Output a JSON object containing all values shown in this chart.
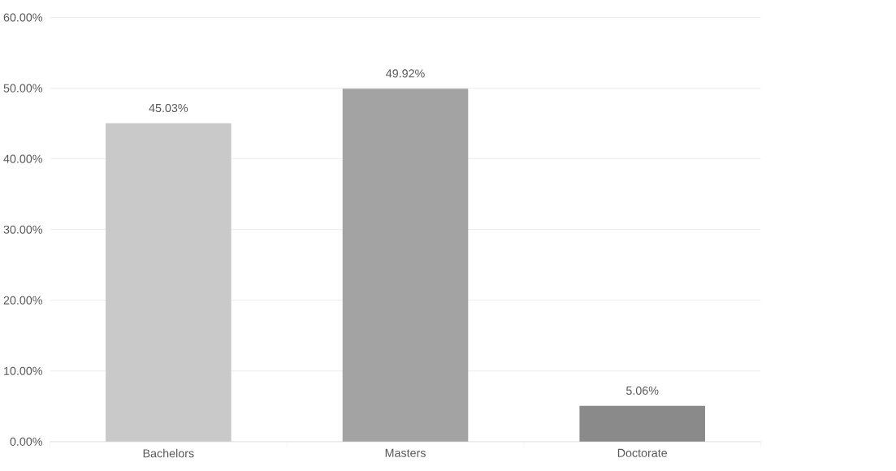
{
  "chart_data": {
    "type": "bar",
    "categories": [
      "Bachelors",
      "Masters",
      "Doctorate"
    ],
    "values": [
      45.03,
      49.92,
      5.06
    ],
    "value_labels": [
      "45.03%",
      "49.92%",
      "5.06%"
    ],
    "colors": [
      "#c9c9c9",
      "#a3a3a3",
      "#8a8a8a"
    ],
    "ylim": [
      0,
      60
    ],
    "yticks": [
      {
        "value": 0,
        "label": "0.00%"
      },
      {
        "value": 10,
        "label": "10.00%"
      },
      {
        "value": 20,
        "label": "20.00%"
      },
      {
        "value": 30,
        "label": "30.00%"
      },
      {
        "value": 40,
        "label": "40.00%"
      },
      {
        "value": 50,
        "label": "50.00%"
      },
      {
        "value": 60,
        "label": "60.00%"
      }
    ],
    "grid": "y"
  }
}
